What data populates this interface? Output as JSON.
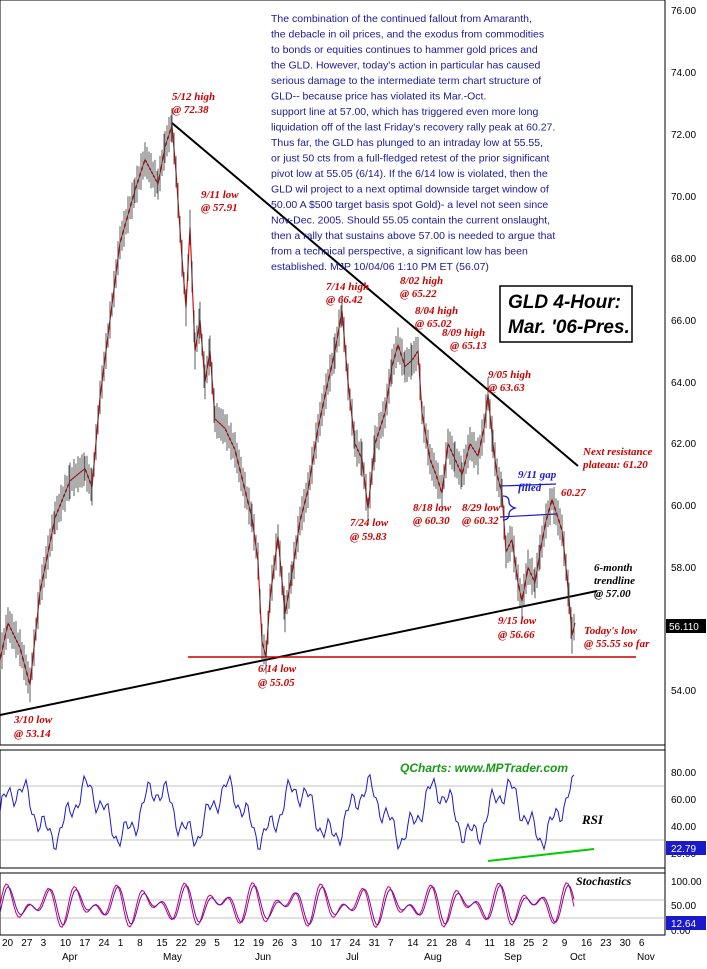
{
  "chart_data": {
    "type": "line",
    "title": "GLD 4-Hour:",
    "subtitle": "Mar. '06-Pres.",
    "commentary": [
      "The combination of the continued fallout from Amaranth,",
      "the debacle in oil prices, and the exodus from commodities",
      "to bonds or equities continues to hammer gold prices and",
      "the GLD. However, today's action in particular has caused",
      "serious damage to the intermediate term chart structure of",
      "GLD-- because price has violated its Mar.-Oct.",
      "support line at 57.00, which has triggered even more long",
      "liquidation off of the last Friday's recovery rally peak at 60.27.",
      "Thus far, the GLD has plunged to an intraday low at 55.55,",
      "or just 50 cts from a full-fledged retest of the prior significant",
      "pivot low at 55.05 (6/14). If the 6/14 low is violated,  then the",
      "GLD wil project to a next optimal downside target window of",
      "50.00 A $500 target basis spot Gold)- a level not seen since",
      "Nov-Dec. 2005. Should 55.05 contain the current onslaught,",
      "then a rally that sustains above 57.00 is needed to argue that",
      "from a technical perspective, a significant low has been",
      "established. MJP 10/04/06  1:10 PM ET   (56.07)"
    ],
    "price_axis": {
      "ticks": [
        "76.00",
        "74.00",
        "72.00",
        "70.00",
        "68.00",
        "66.00",
        "64.00",
        "62.00",
        "60.00",
        "58.00",
        "56.00",
        "54.00"
      ],
      "last_price": "56.110",
      "ylim": [
        52,
        76
      ]
    },
    "rsi_axis": {
      "ticks": [
        "80.00",
        "60.00",
        "40.00",
        "20.00"
      ],
      "label": "RSI",
      "last": "22.79"
    },
    "stoch_axis": {
      "ticks": [
        "100.00",
        "50.00",
        "0.00"
      ],
      "label": "Stochastics",
      "last": "12.64"
    },
    "x_day_labels": [
      "20",
      "27",
      "3",
      "10",
      "17",
      "24",
      "1",
      "8",
      "15",
      "22",
      "29",
      "5",
      "12",
      "19",
      "26",
      "3",
      "10",
      "17",
      "24",
      "31",
      "7",
      "14",
      "21",
      "28",
      "4",
      "11",
      "18",
      "25",
      "2",
      "9",
      "16",
      "23",
      "30",
      "6"
    ],
    "x_month_labels": [
      "Apr",
      "May",
      "Jun",
      "Jul",
      "Aug",
      "Sep",
      "Oct",
      "Nov"
    ],
    "watermark": "QCharts: www.MPTrader.com",
    "annotations": {
      "a512": [
        "5/12 high",
        "@ 72.38"
      ],
      "a911": [
        "9/11 low",
        "@ 57.91"
      ],
      "a310": [
        "3/10 low",
        "@ 53.14"
      ],
      "a614": [
        "6/14 low",
        "@ 55.05"
      ],
      "a714": [
        "7/14 high",
        "@ 66.42"
      ],
      "a802": [
        "8/02 high",
        "@ 65.22"
      ],
      "a804": [
        "8/04 high",
        "@ 65.02"
      ],
      "a809": [
        "8/09 high",
        "@ 65.13"
      ],
      "a724": [
        "7/24 low",
        "@ 59.83"
      ],
      "a818": [
        "8/18 low",
        "@ 60.30"
      ],
      "a829": [
        "8/29 low",
        "@ 60.32"
      ],
      "a905": [
        "9/05 high",
        "@ 63.63"
      ],
      "a915": [
        "9/15 low",
        "@ 56.66"
      ],
      "gap": [
        "9/11 gap",
        "filled"
      ],
      "peak": "60.27",
      "resist": [
        "Next resistance",
        "plateau: 61.20"
      ],
      "trend": [
        "6-month",
        "trendline",
        "@ 57.00"
      ],
      "today": [
        "Today's low",
        "@ 55.55 so far"
      ]
    },
    "series": [
      {
        "values": [
          [
            0,
            55.0
          ],
          [
            8,
            56.2
          ],
          [
            20,
            55.4
          ],
          [
            30,
            54.2
          ],
          [
            40,
            57.2
          ],
          [
            55,
            59.6
          ],
          [
            70,
            60.8
          ],
          [
            85,
            61.2
          ],
          [
            92,
            60.6
          ],
          [
            100,
            63.5
          ],
          [
            110,
            66.0
          ],
          [
            120,
            68.5
          ],
          [
            135,
            70.2
          ],
          [
            145,
            71.2
          ],
          [
            158,
            70.4
          ],
          [
            165,
            71.6
          ],
          [
            172,
            72.3
          ],
          [
            176,
            70.8
          ],
          [
            182,
            68.0
          ],
          [
            186,
            66.4
          ],
          [
            190,
            69.0
          ],
          [
            195,
            65.0
          ],
          [
            200,
            66.0
          ],
          [
            205,
            64.0
          ],
          [
            210,
            65.0
          ],
          [
            215,
            62.8
          ],
          [
            225,
            62.5
          ],
          [
            235,
            61.8
          ],
          [
            245,
            60.5
          ],
          [
            252,
            59.6
          ],
          [
            258,
            58.2
          ],
          [
            262,
            55.6
          ],
          [
            266,
            55.1
          ],
          [
            270,
            57.0
          ],
          [
            278,
            59.0
          ],
          [
            285,
            56.5
          ],
          [
            292,
            57.8
          ],
          [
            300,
            59.5
          ],
          [
            308,
            60.5
          ],
          [
            318,
            62.5
          ],
          [
            328,
            64.0
          ],
          [
            335,
            65.0
          ],
          [
            342,
            66.3
          ],
          [
            348,
            64.0
          ],
          [
            355,
            62.0
          ],
          [
            362,
            61.5
          ],
          [
            368,
            59.9
          ],
          [
            375,
            62.0
          ],
          [
            385,
            63.0
          ],
          [
            392,
            64.5
          ],
          [
            398,
            65.2
          ],
          [
            405,
            64.5
          ],
          [
            412,
            64.7
          ],
          [
            418,
            65.0
          ],
          [
            422,
            63.0
          ],
          [
            430,
            61.5
          ],
          [
            436,
            61.0
          ],
          [
            442,
            60.4
          ],
          [
            448,
            62.0
          ],
          [
            455,
            61.5
          ],
          [
            462,
            61.0
          ],
          [
            470,
            62.0
          ],
          [
            478,
            61.6
          ],
          [
            484,
            62.5
          ],
          [
            488,
            63.6
          ],
          [
            493,
            62.0
          ],
          [
            497,
            61.0
          ],
          [
            502,
            60.4
          ],
          [
            506,
            58.5
          ],
          [
            512,
            58.9
          ],
          [
            518,
            57.5
          ],
          [
            522,
            56.9
          ],
          [
            528,
            58.0
          ],
          [
            535,
            57.5
          ],
          [
            540,
            58.5
          ],
          [
            546,
            59.5
          ],
          [
            552,
            60.2
          ],
          [
            558,
            59.6
          ],
          [
            562,
            59.2
          ],
          [
            566,
            58.0
          ],
          [
            569,
            57.0
          ],
          [
            572,
            55.8
          ],
          [
            575,
            56.2
          ]
        ]
      }
    ]
  }
}
